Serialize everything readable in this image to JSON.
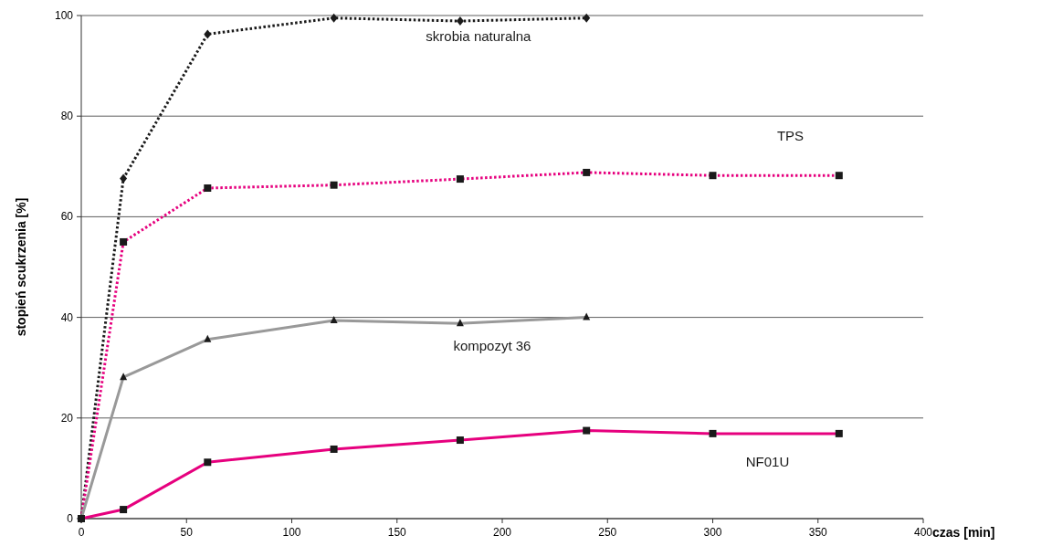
{
  "chart_data": {
    "type": "line",
    "xlabel": "czas [min]",
    "ylabel": "stopień scukrzenia [%]",
    "xlim": [
      0,
      400
    ],
    "xticks": [
      0,
      50,
      100,
      150,
      200,
      250,
      300,
      350,
      400
    ],
    "ylim": [
      0,
      100
    ],
    "yticks": [
      0,
      20,
      40,
      60,
      80,
      100
    ],
    "grid": "y",
    "series": [
      {
        "name": "skrobia naturalna",
        "color": "#1a1a1a",
        "marker": "diamond",
        "line_style": "dotted",
        "x": [
          0,
          20,
          60,
          120,
          180,
          240
        ],
        "values": [
          0,
          67.6,
          96.3,
          99.5,
          98.9,
          99.5
        ]
      },
      {
        "name": "TPS",
        "color": "#e6007e",
        "marker": "square",
        "line_style": "dotted",
        "x": [
          0,
          20,
          60,
          120,
          180,
          240,
          300,
          360
        ],
        "values": [
          0,
          55,
          65.7,
          66.3,
          67.5,
          68.8,
          68.2,
          68.2
        ]
      },
      {
        "name": "kompozyt 36",
        "color": "#999999",
        "marker": "triangle",
        "line_style": "solid",
        "x": [
          0,
          20,
          60,
          120,
          180,
          240
        ],
        "values": [
          0,
          28.1,
          35.6,
          39.4,
          38.8,
          40
        ]
      },
      {
        "name": "NF01U",
        "color": "#e6007e",
        "marker": "square",
        "line_style": "solid",
        "x": [
          0,
          20,
          60,
          120,
          180,
          240,
          300,
          360
        ],
        "values": [
          0,
          1.8,
          11.2,
          13.8,
          15.6,
          17.5,
          16.9,
          16.9
        ]
      }
    ]
  }
}
